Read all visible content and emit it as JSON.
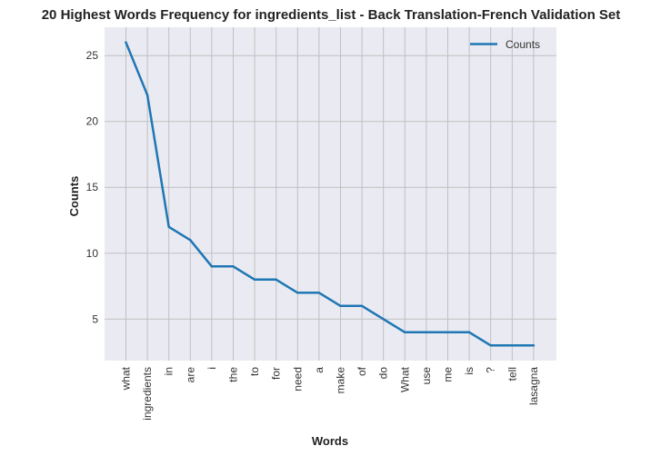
{
  "chart_data": {
    "type": "line",
    "title": "20 Highest Words Frequency for ingredients_list - Back Translation-French Validation Set",
    "xlabel": "Words",
    "ylabel": "Counts",
    "categories": [
      "what",
      "ingredients",
      "in",
      "are",
      "i",
      "the",
      "to",
      "for",
      "need",
      "a",
      "make",
      "of",
      "do",
      "What",
      "use",
      "me",
      "is",
      "?",
      "tell",
      "lasagna"
    ],
    "series": [
      {
        "name": "Counts",
        "values": [
          26,
          22,
          12,
          11,
          9,
          9,
          8,
          8,
          7,
          7,
          6,
          6,
          5,
          4,
          4,
          4,
          4,
          3,
          3,
          3
        ]
      }
    ],
    "yticks": [
      5,
      10,
      15,
      20,
      25
    ],
    "ylim": [
      1.85,
      27.15
    ],
    "grid": true,
    "legend_position": "top-right",
    "colors": {
      "line": "#1f77b4",
      "plot_background": "#eaeaf2",
      "grid": "#c0c0c0"
    }
  }
}
